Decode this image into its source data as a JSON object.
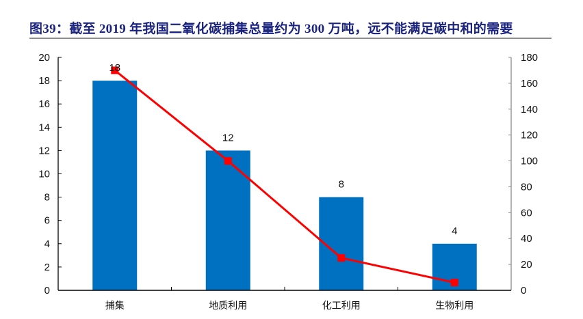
{
  "title": "图39：截至 2019 年我国二氧化碳捕集总量约为 300 万吨，远不能满足碳中和的需要",
  "colors": {
    "title": "#1a237e",
    "bar": "#0070c0",
    "line": "#ff0000",
    "left_axis": "#000000",
    "right_axis": "#8c8c8c"
  },
  "chart_data": {
    "type": "bar+line",
    "title": "图39：截至 2019 年我国二氧化碳捕集总量约为 300 万吨，远不能满足碳中和的需要",
    "categories": [
      "捕集",
      "地质利用",
      "化工利用",
      "生物利用"
    ],
    "series": [
      {
        "name": "bar_series",
        "type": "bar",
        "axis": "left",
        "values": [
          18,
          12,
          8,
          4
        ],
        "data_labels": [
          "18",
          "12",
          "8",
          "4"
        ],
        "color": "#0070c0"
      },
      {
        "name": "line_series",
        "type": "line",
        "axis": "right",
        "values": [
          170,
          100,
          25,
          6
        ],
        "color": "#ff0000",
        "marker": "square"
      }
    ],
    "left_axis": {
      "ylim": [
        0,
        20
      ],
      "ticks": [
        0,
        2,
        4,
        6,
        8,
        10,
        12,
        14,
        16,
        18,
        20
      ]
    },
    "right_axis": {
      "ylim": [
        0,
        180
      ],
      "ticks": [
        0,
        20,
        40,
        60,
        80,
        100,
        120,
        140,
        160,
        180
      ]
    },
    "xlabel": "",
    "ylabel": "",
    "grid": false,
    "legend": "none"
  }
}
